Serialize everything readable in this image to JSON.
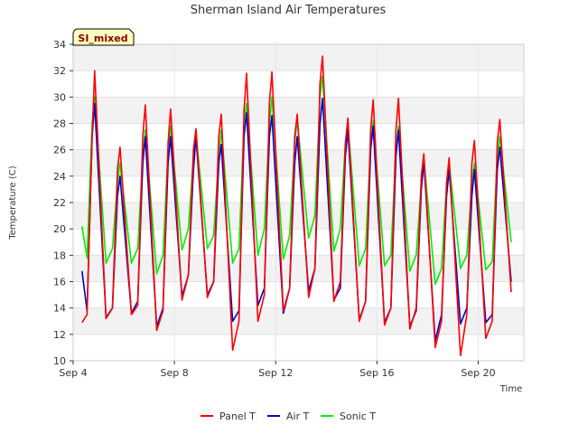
{
  "chart_data": {
    "type": "line",
    "title": "Sherman Island Air Temperatures",
    "xlabel": "Time",
    "ylabel": "Temperature (C)",
    "badge": "SI_mixed",
    "ylim": [
      10,
      34
    ],
    "y_ticks": [
      10,
      12,
      14,
      16,
      18,
      20,
      22,
      24,
      26,
      28,
      30,
      32,
      34
    ],
    "xlim": [
      "Sep 4",
      "Sep 21.8"
    ],
    "x_ticks": [
      "Sep 4",
      "Sep 8",
      "Sep 12",
      "Sep 16",
      "Sep 20"
    ],
    "grid": true,
    "legend_position": "bottom",
    "colors": {
      "Panel T": "#ff0000",
      "Air T": "#0000cc",
      "Sonic T": "#00ee00"
    },
    "series": [
      {
        "name": "Panel T",
        "x": [
          4.35,
          4.55,
          4.75,
          4.85,
          5.3,
          5.55,
          5.75,
          5.85,
          6.3,
          6.55,
          6.75,
          6.85,
          7.3,
          7.55,
          7.75,
          7.85,
          8.3,
          8.55,
          8.75,
          8.85,
          9.3,
          9.55,
          9.75,
          9.85,
          10.3,
          10.55,
          10.75,
          10.85,
          11.3,
          11.55,
          11.75,
          11.85,
          12.3,
          12.55,
          12.75,
          12.85,
          13.3,
          13.55,
          13.75,
          13.85,
          14.3,
          14.55,
          14.75,
          14.85,
          15.3,
          15.55,
          15.75,
          15.85,
          16.3,
          16.55,
          16.75,
          16.85,
          17.3,
          17.55,
          17.75,
          17.85,
          18.3,
          18.55,
          18.75,
          18.85,
          19.3,
          19.55,
          19.75,
          19.85,
          20.3,
          20.55,
          20.75,
          20.85,
          21.3
        ],
        "values": [
          12.9,
          13.5,
          27.0,
          32.0,
          13.2,
          14.0,
          24.5,
          26.2,
          13.5,
          14.2,
          27.0,
          29.4,
          12.3,
          13.8,
          26.5,
          29.1,
          14.6,
          16.5,
          26.0,
          27.6,
          14.8,
          16.0,
          27.0,
          28.7,
          10.8,
          13.0,
          29.0,
          31.8,
          13.0,
          15.0,
          29.5,
          31.9,
          13.8,
          15.5,
          27.0,
          28.7,
          14.8,
          17.0,
          31.0,
          33.1,
          14.5,
          16.0,
          26.5,
          28.4,
          13.0,
          14.5,
          27.5,
          29.8,
          12.7,
          14.0,
          27.5,
          29.9,
          12.4,
          14.0,
          24.0,
          25.7,
          11.0,
          13.0,
          23.5,
          25.4,
          10.4,
          13.5,
          25.0,
          26.7,
          11.7,
          13.0,
          26.5,
          28.3,
          15.2
        ]
      },
      {
        "name": "Air T",
        "x": [
          4.35,
          4.55,
          4.75,
          4.85,
          5.3,
          5.55,
          5.75,
          5.85,
          6.3,
          6.55,
          6.75,
          6.85,
          7.3,
          7.55,
          7.75,
          7.85,
          8.3,
          8.55,
          8.75,
          8.85,
          9.3,
          9.55,
          9.75,
          9.85,
          10.3,
          10.55,
          10.75,
          10.85,
          11.3,
          11.55,
          11.75,
          11.85,
          12.3,
          12.55,
          12.75,
          12.85,
          13.3,
          13.55,
          13.75,
          13.85,
          14.3,
          14.55,
          14.75,
          14.85,
          15.3,
          15.55,
          15.75,
          15.85,
          16.3,
          16.55,
          16.75,
          16.85,
          17.3,
          17.55,
          17.75,
          17.85,
          18.3,
          18.55,
          18.75,
          18.85,
          19.3,
          19.55,
          19.75,
          19.85,
          20.3,
          20.55,
          20.75,
          20.85,
          21.3
        ],
        "values": [
          16.8,
          13.8,
          27.0,
          29.5,
          13.3,
          14.0,
          22.5,
          24.0,
          13.6,
          14.5,
          25.0,
          27.0,
          12.6,
          14.0,
          25.0,
          27.0,
          14.9,
          16.5,
          24.5,
          27.0,
          15.0,
          16.0,
          25.0,
          26.4,
          13.0,
          13.8,
          27.0,
          28.8,
          14.2,
          15.5,
          27.0,
          28.6,
          13.6,
          15.5,
          25.0,
          27.0,
          15.3,
          17.0,
          28.0,
          29.9,
          14.6,
          15.5,
          25.5,
          27.5,
          13.1,
          14.5,
          26.0,
          27.8,
          12.9,
          14.0,
          25.5,
          27.5,
          12.6,
          13.8,
          23.0,
          25.1,
          11.5,
          13.5,
          22.5,
          24.5,
          12.8,
          14.0,
          22.5,
          24.5,
          12.9,
          13.5,
          24.5,
          26.2,
          16.0
        ]
      },
      {
        "name": "Sonic T",
        "x": [
          4.35,
          4.55,
          4.75,
          4.85,
          5.3,
          5.55,
          5.75,
          5.85,
          6.3,
          6.55,
          6.75,
          6.85,
          7.3,
          7.55,
          7.75,
          7.85,
          8.3,
          8.55,
          8.75,
          8.85,
          9.3,
          9.55,
          9.75,
          9.85,
          10.3,
          10.55,
          10.75,
          10.85,
          11.3,
          11.55,
          11.75,
          11.85,
          12.3,
          12.55,
          12.75,
          12.85,
          13.3,
          13.55,
          13.75,
          13.85,
          14.3,
          14.55,
          14.75,
          14.85,
          15.3,
          15.55,
          15.75,
          15.85,
          16.3,
          16.55,
          16.75,
          16.85,
          17.3,
          17.55,
          17.75,
          17.85,
          18.3,
          18.55,
          18.75,
          18.85,
          19.3,
          19.55,
          19.75,
          19.85,
          20.3,
          20.55,
          20.75,
          20.85,
          21.3
        ],
        "values": [
          20.2,
          17.8,
          28.0,
          30.0,
          17.4,
          18.5,
          23.5,
          25.0,
          17.4,
          18.5,
          25.5,
          27.5,
          16.6,
          18.0,
          26.0,
          27.8,
          18.4,
          20.0,
          25.5,
          27.2,
          18.5,
          19.5,
          25.5,
          27.5,
          17.4,
          18.5,
          28.0,
          29.5,
          18.0,
          20.0,
          28.0,
          30.0,
          17.7,
          19.5,
          26.5,
          28.3,
          19.3,
          21.0,
          30.0,
          31.6,
          18.3,
          20.0,
          26.5,
          28.0,
          17.2,
          18.5,
          26.5,
          28.2,
          17.2,
          18.0,
          26.0,
          27.8,
          16.8,
          18.0,
          23.5,
          25.4,
          15.8,
          17.0,
          23.5,
          25.0,
          17.0,
          18.0,
          23.5,
          25.0,
          16.9,
          17.5,
          25.5,
          27.0,
          19.0
        ]
      }
    ]
  }
}
